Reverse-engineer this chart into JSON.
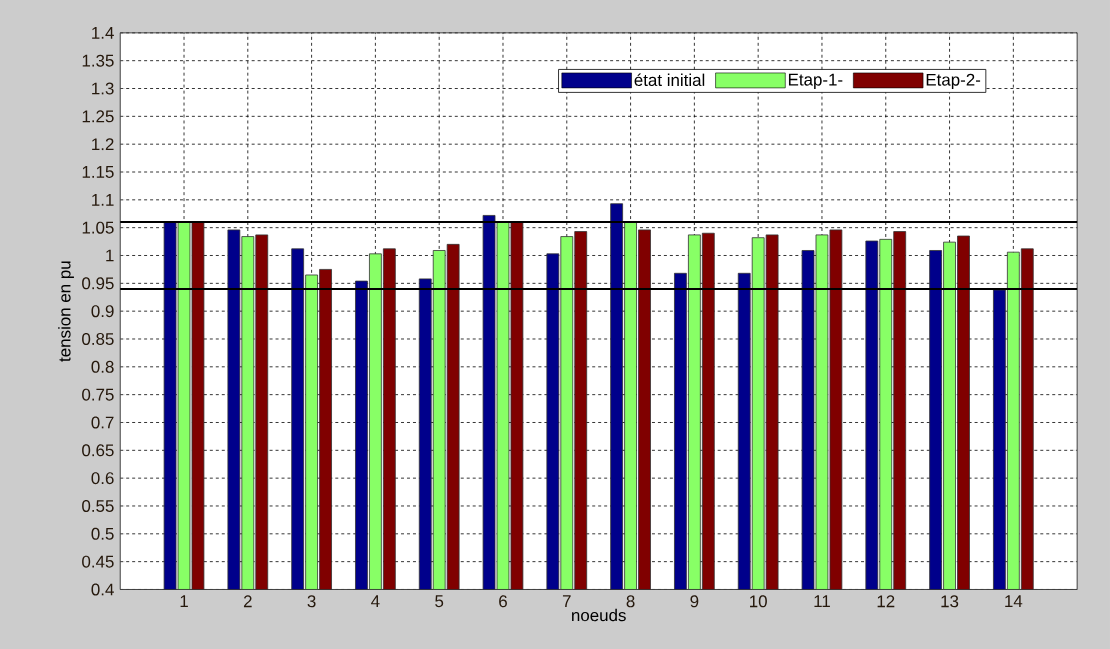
{
  "chart_data": {
    "type": "bar",
    "xlabel": "noeuds",
    "ylabel": "tension en pu",
    "categories": [
      "1",
      "2",
      "3",
      "4",
      "5",
      "6",
      "7",
      "8",
      "9",
      "10",
      "11",
      "12",
      "13",
      "14"
    ],
    "series": [
      {
        "name": "état initial",
        "color": "#00008b",
        "values": [
          1.06,
          1.046,
          1.012,
          0.954,
          0.958,
          1.072,
          1.003,
          1.093,
          0.968,
          0.968,
          1.009,
          1.026,
          1.009,
          0.938
        ]
      },
      {
        "name": "Etap-1-",
        "color": "#88ff66",
        "values": [
          1.06,
          1.034,
          0.965,
          1.003,
          1.009,
          1.06,
          1.034,
          1.06,
          1.037,
          1.032,
          1.037,
          1.029,
          1.024,
          1.006
        ]
      },
      {
        "name": "Etap-2-",
        "color": "#800000",
        "values": [
          1.06,
          1.037,
          0.975,
          1.012,
          1.02,
          1.06,
          1.043,
          1.046,
          1.04,
          1.037,
          1.046,
          1.043,
          1.035,
          1.012
        ]
      }
    ],
    "ylim": [
      0.4,
      1.4
    ],
    "yticks": [
      0.4,
      0.45,
      0.5,
      0.55,
      0.6,
      0.65,
      0.7,
      0.75,
      0.8,
      0.85,
      0.9,
      0.95,
      1,
      1.05,
      1.1,
      1.15,
      1.2,
      1.25,
      1.3,
      1.35,
      1.4
    ],
    "ref_lines": [
      {
        "axis": "y",
        "value": 1.06,
        "color": "#000000"
      },
      {
        "axis": "y",
        "value": 0.94,
        "color": "#000000"
      }
    ],
    "grid": true,
    "legend": "top right"
  }
}
